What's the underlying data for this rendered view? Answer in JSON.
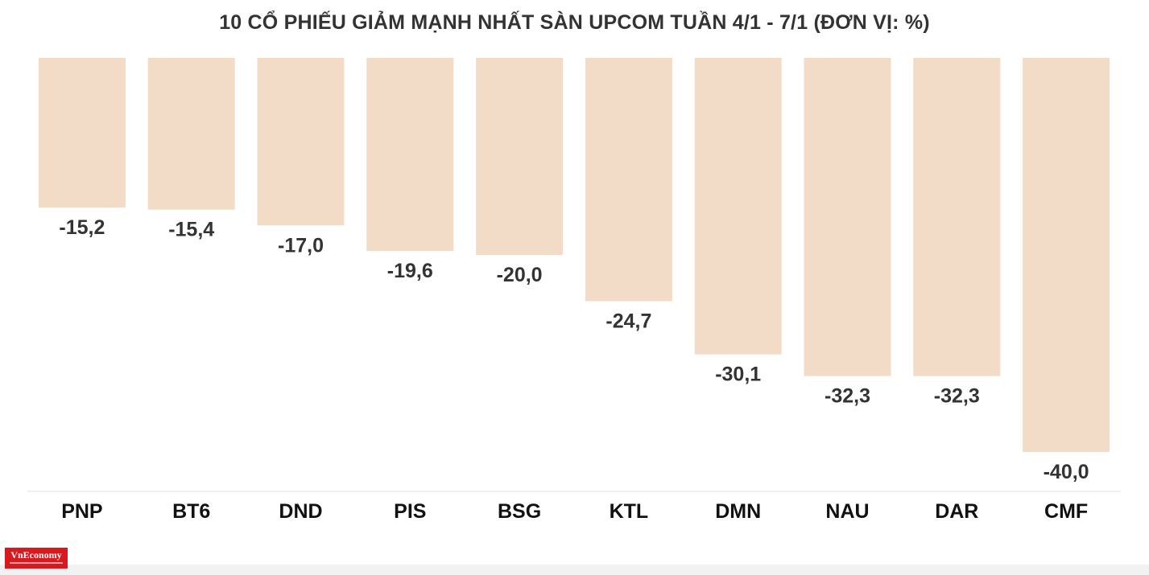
{
  "title": "10 CỔ PHIẾU GIẢM MẠNH NHẤT SÀN UPCOM TUẦN 4/1 - 7/1 (ĐƠN VỊ: %)",
  "logo": {
    "text": "VnEconomy"
  },
  "colors": {
    "bar": "#f2dcc8",
    "label": "#333333",
    "axis": "#e0e0e0",
    "logo": "#d9191f"
  },
  "chart_data": {
    "type": "bar",
    "title": "10 CỔ PHIẾU GIẢM MẠNH NHẤT SÀN UPCOM TUẦN 4/1 - 7/1 (ĐƠN VỊ: %)",
    "categories": [
      "PNP",
      "BT6",
      "DND",
      "PIS",
      "BSG",
      "KTL",
      "DMN",
      "NAU",
      "DAR",
      "CMF"
    ],
    "values": [
      -15.2,
      -15.4,
      -17.0,
      -19.6,
      -20.0,
      -24.7,
      -30.1,
      -32.3,
      -32.3,
      -40.0
    ],
    "value_labels": [
      "-15,2",
      "-15,4",
      "-17,0",
      "-19,6",
      "-20,0",
      "-24,7",
      "-30,1",
      "-32,3",
      "-32,3",
      "-40,0"
    ],
    "xlabel": "",
    "ylabel": "",
    "ylim": [
      -40,
      0
    ],
    "grid": false,
    "legend": "none"
  }
}
